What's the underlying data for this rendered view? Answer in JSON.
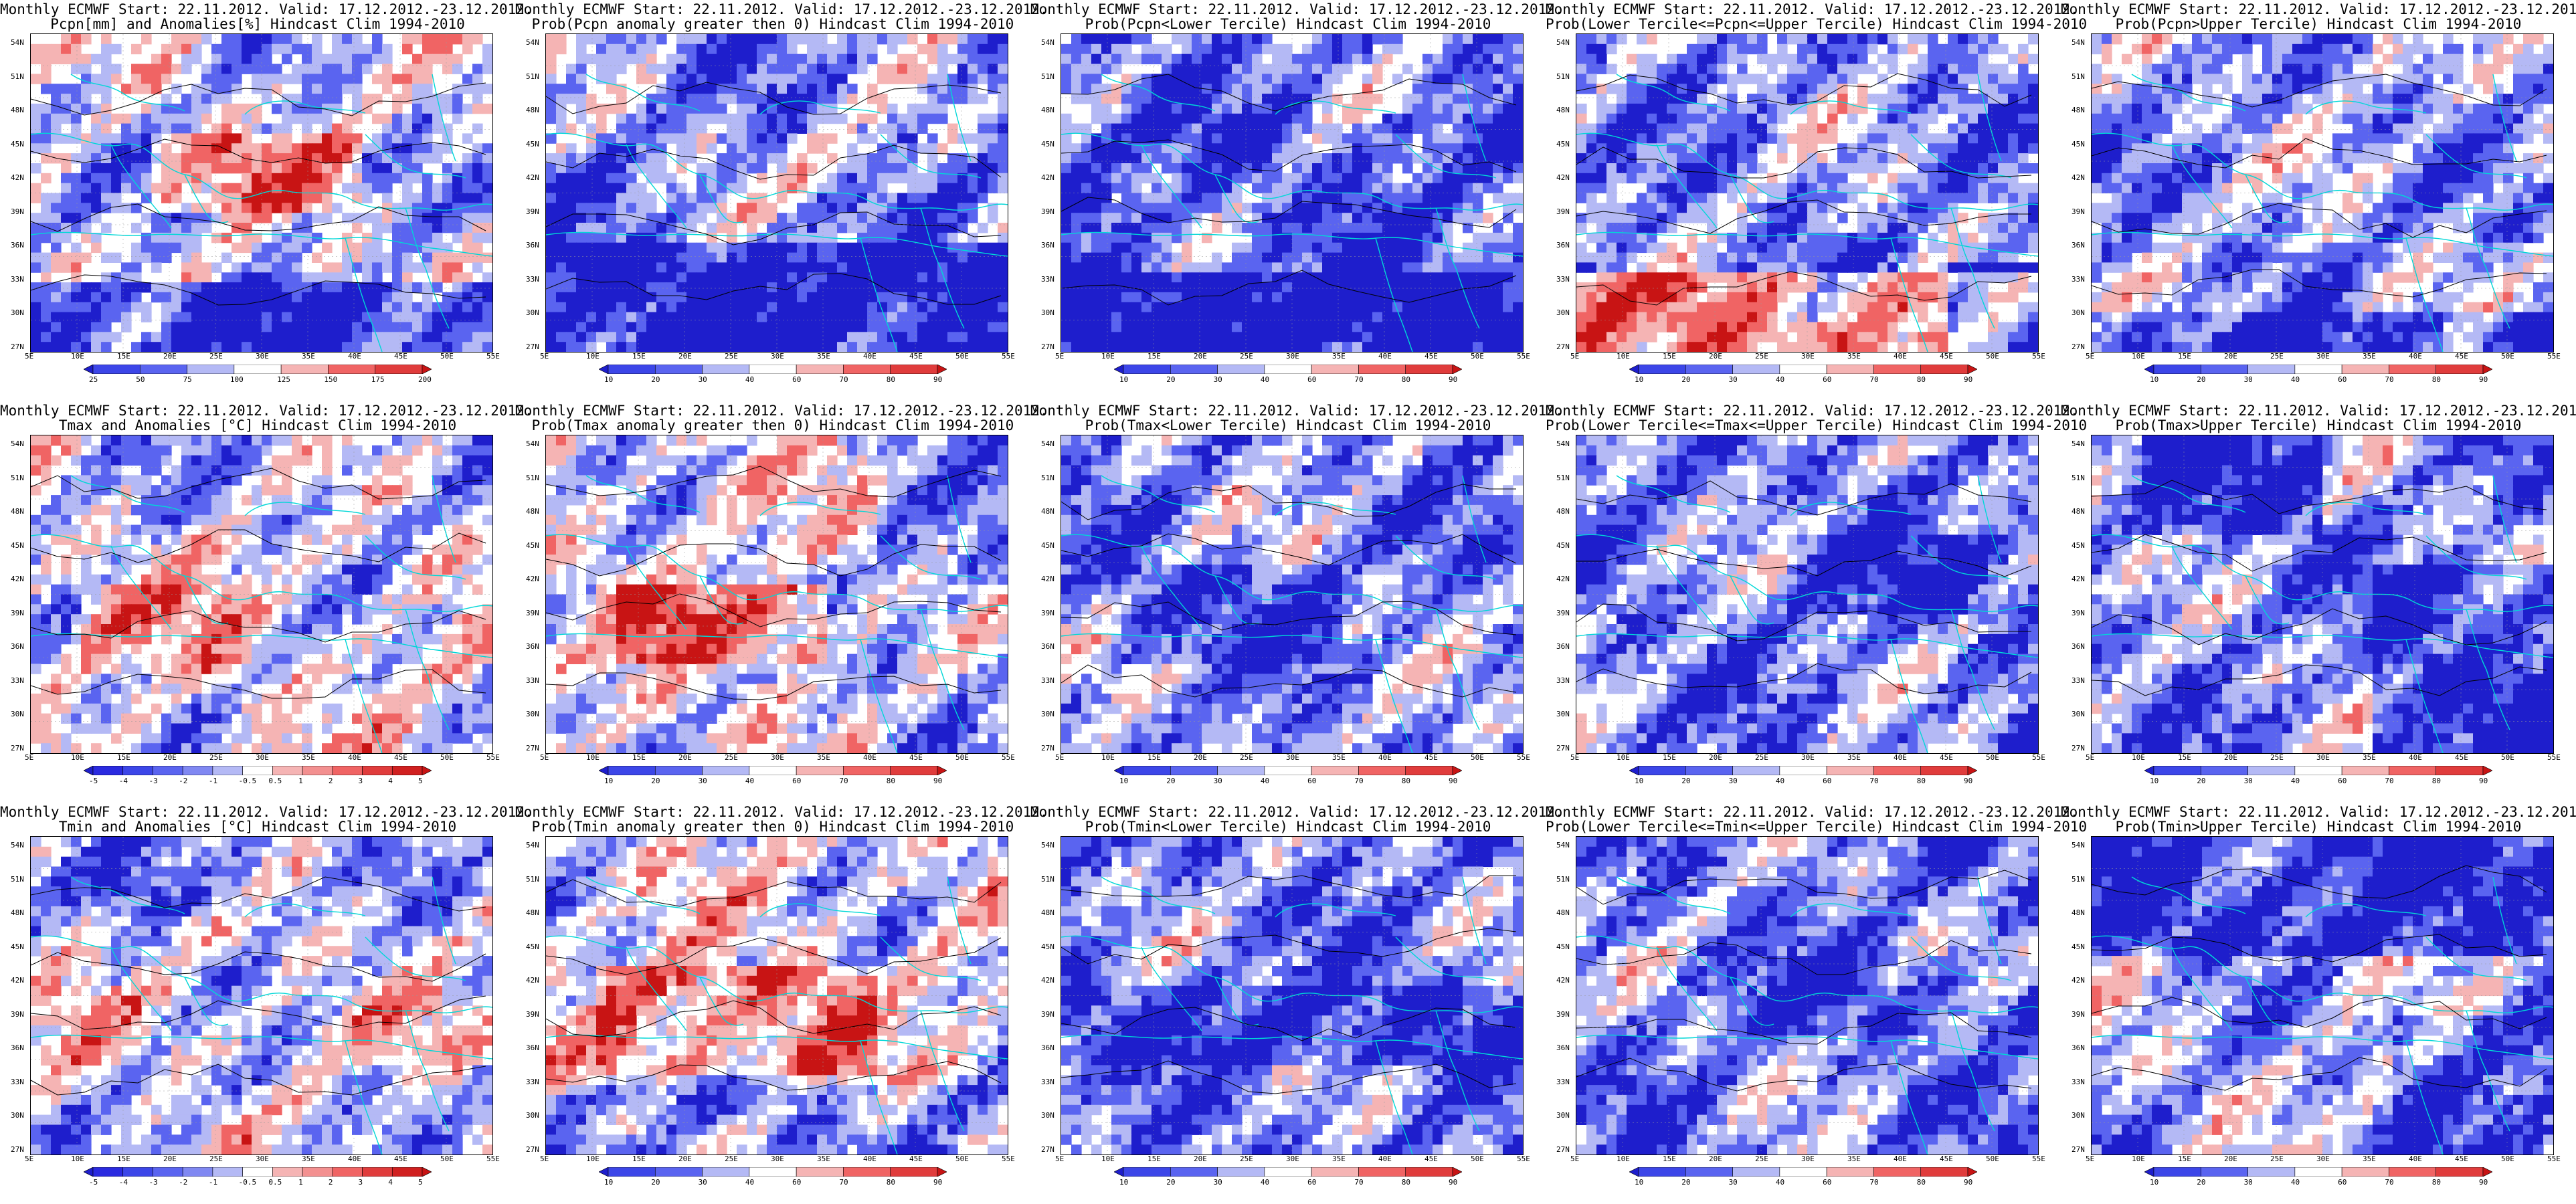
{
  "figure": {
    "palette": {
      "blue_strong": "#1e1ecc",
      "blue_mid": "#5a64f0",
      "blue_light": "#b4b9f5",
      "white": "#ffffff",
      "red_light": "#f5b4b4",
      "red_mid": "#f06464",
      "red_strong": "#c81414",
      "coast": "#00d7d7",
      "contour": "#000000"
    },
    "lat_labels": [
      "54N",
      "51N",
      "48N",
      "45N",
      "42N",
      "39N",
      "36N",
      "33N",
      "30N",
      "27N"
    ],
    "lon_labels": [
      "5E",
      "10E",
      "15E",
      "20E",
      "25E",
      "30E",
      "35E",
      "40E",
      "45E",
      "50E",
      "55E"
    ],
    "panels": [
      {
        "id": "pcpn-anom",
        "title1": "Monthly ECMWF Start: 22.11.2012. Valid: 17.12.2012.-23.12.2012.",
        "title2": "Pcpn[mm] and Anomalies[%] Hindcast Clim 1994-2010",
        "legend": [
          "25",
          "50",
          "75",
          "100",
          "125",
          "150",
          "175",
          "200"
        ],
        "pattern": 0
      },
      {
        "id": "pcpn-prob-pos",
        "title1": "Monthly ECMWF Start: 22.11.2012. Valid: 17.12.2012.-23.12.2012.",
        "title2": "Prob(Pcpn anomaly greater then 0) Hindcast Clim 1994-2010",
        "legend": [
          "10",
          "20",
          "30",
          "40",
          "60",
          "70",
          "80",
          "90"
        ],
        "pattern": 1
      },
      {
        "id": "pcpn-prob-lower",
        "title1": "Monthly ECMWF Start: 22.11.2012. Valid: 17.12.2012.-23.12.2012.",
        "title2": "Prob(Pcpn<Lower Tercile) Hindcast Clim 1994-2010",
        "legend": [
          "10",
          "20",
          "30",
          "40",
          "60",
          "70",
          "80",
          "90"
        ],
        "pattern": 2
      },
      {
        "id": "pcpn-prob-middle",
        "title1": "Monthly ECMWF Start: 22.11.2012. Valid: 17.12.2012.-23.12.2012.",
        "title2": "Prob(Lower Tercile<=Pcpn<=Upper Tercile) Hindcast Clim 1994-2010",
        "legend": [
          "10",
          "20",
          "30",
          "40",
          "60",
          "70",
          "80",
          "90"
        ],
        "pattern": 3
      },
      {
        "id": "pcpn-prob-upper",
        "title1": "Monthly ECMWF Start: 22.11.2012. Valid: 17.12.2012.-23.12.2012.",
        "title2": "Prob(Pcpn>Upper Tercile) Hindcast Clim 1994-2010",
        "legend": [
          "10",
          "20",
          "30",
          "40",
          "60",
          "70",
          "80",
          "90"
        ],
        "pattern": 4
      },
      {
        "id": "tmax-anom",
        "title1": "Monthly ECMWF Start: 22.11.2012. Valid: 17.12.2012.-23.12.2012.",
        "title2": "Tmax and Anomalies [°C] Hindcast Clim 1994-2010",
        "legend": [
          "-5",
          "-4",
          "-3",
          "-2",
          "-1",
          "-0.5",
          "0.5",
          "1",
          "2",
          "3",
          "4",
          "5"
        ],
        "pattern": 5
      },
      {
        "id": "tmax-prob-pos",
        "title1": "Monthly ECMWF Start: 22.11.2012. Valid: 17.12.2012.-23.12.2012.",
        "title2": "Prob(Tmax anomaly greater then 0) Hindcast Clim 1994-2010",
        "legend": [
          "10",
          "20",
          "30",
          "40",
          "60",
          "70",
          "80",
          "90"
        ],
        "pattern": 6
      },
      {
        "id": "tmax-prob-lower",
        "title1": "Monthly ECMWF Start: 22.11.2012. Valid: 17.12.2012.-23.12.2012.",
        "title2": "Prob(Tmax<Lower Tercile) Hindcast Clim 1994-2010",
        "legend": [
          "10",
          "20",
          "30",
          "40",
          "60",
          "70",
          "80",
          "90"
        ],
        "pattern": 7
      },
      {
        "id": "tmax-prob-middle",
        "title1": "Monthly ECMWF Start: 22.11.2012. Valid: 17.12.2012.-23.12.2012.",
        "title2": "Prob(Lower Tercile<=Tmax<=Upper Tercile) Hindcast Clim 1994-2010",
        "legend": [
          "10",
          "20",
          "30",
          "40",
          "60",
          "70",
          "80",
          "90"
        ],
        "pattern": 8
      },
      {
        "id": "tmax-prob-upper",
        "title1": "Monthly ECMWF Start: 22.11.2012. Valid: 17.12.2012.-23.12.2012.",
        "title2": "Prob(Tmax>Upper Tercile) Hindcast Clim 1994-2010",
        "legend": [
          "10",
          "20",
          "30",
          "40",
          "60",
          "70",
          "80",
          "90"
        ],
        "pattern": 9
      },
      {
        "id": "tmin-anom",
        "title1": "Monthly ECMWF Start: 22.11.2012. Valid: 17.12.2012.-23.12.2012.",
        "title2": "Tmin and Anomalies [°C] Hindcast Clim 1994-2010",
        "legend": [
          "-5",
          "-4",
          "-3",
          "-2",
          "-1",
          "-0.5",
          "0.5",
          "1",
          "2",
          "3",
          "4",
          "5"
        ],
        "pattern": 10
      },
      {
        "id": "tmin-prob-pos",
        "title1": "Monthly ECMWF Start: 22.11.2012. Valid: 17.12.2012.-23.12.2012.",
        "title2": "Prob(Tmin anomaly greater then 0) Hindcast Clim 1994-2010",
        "legend": [
          "10",
          "20",
          "30",
          "40",
          "60",
          "70",
          "80",
          "90"
        ],
        "pattern": 11
      },
      {
        "id": "tmin-prob-lower",
        "title1": "Monthly ECMWF Start: 22.11.2012. Valid: 17.12.2012.-23.12.2012.",
        "title2": "Prob(Tmin<Lower Tercile) Hindcast Clim 1994-2010",
        "legend": [
          "10",
          "20",
          "30",
          "40",
          "60",
          "70",
          "80",
          "90"
        ],
        "pattern": 12
      },
      {
        "id": "tmin-prob-middle",
        "title1": "Monthly ECMWF Start: 22.11.2012. Valid: 17.12.2012.-23.12.2012.",
        "title2": "Prob(Lower Tercile<=Tmin<=Upper Tercile) Hindcast Clim 1994-2010",
        "legend": [
          "10",
          "20",
          "30",
          "40",
          "60",
          "70",
          "80",
          "90"
        ],
        "pattern": 13
      },
      {
        "id": "tmin-prob-upper",
        "title1": "Monthly ECMWF Start: 22.11.2012. Valid: 17.12.2012.-23.12.2012.",
        "title2": "Prob(Tmin>Upper Tercile) Hindcast Clim 1994-2010",
        "legend": [
          "10",
          "20",
          "30",
          "40",
          "60",
          "70",
          "80",
          "90"
        ],
        "pattern": 14
      }
    ]
  }
}
